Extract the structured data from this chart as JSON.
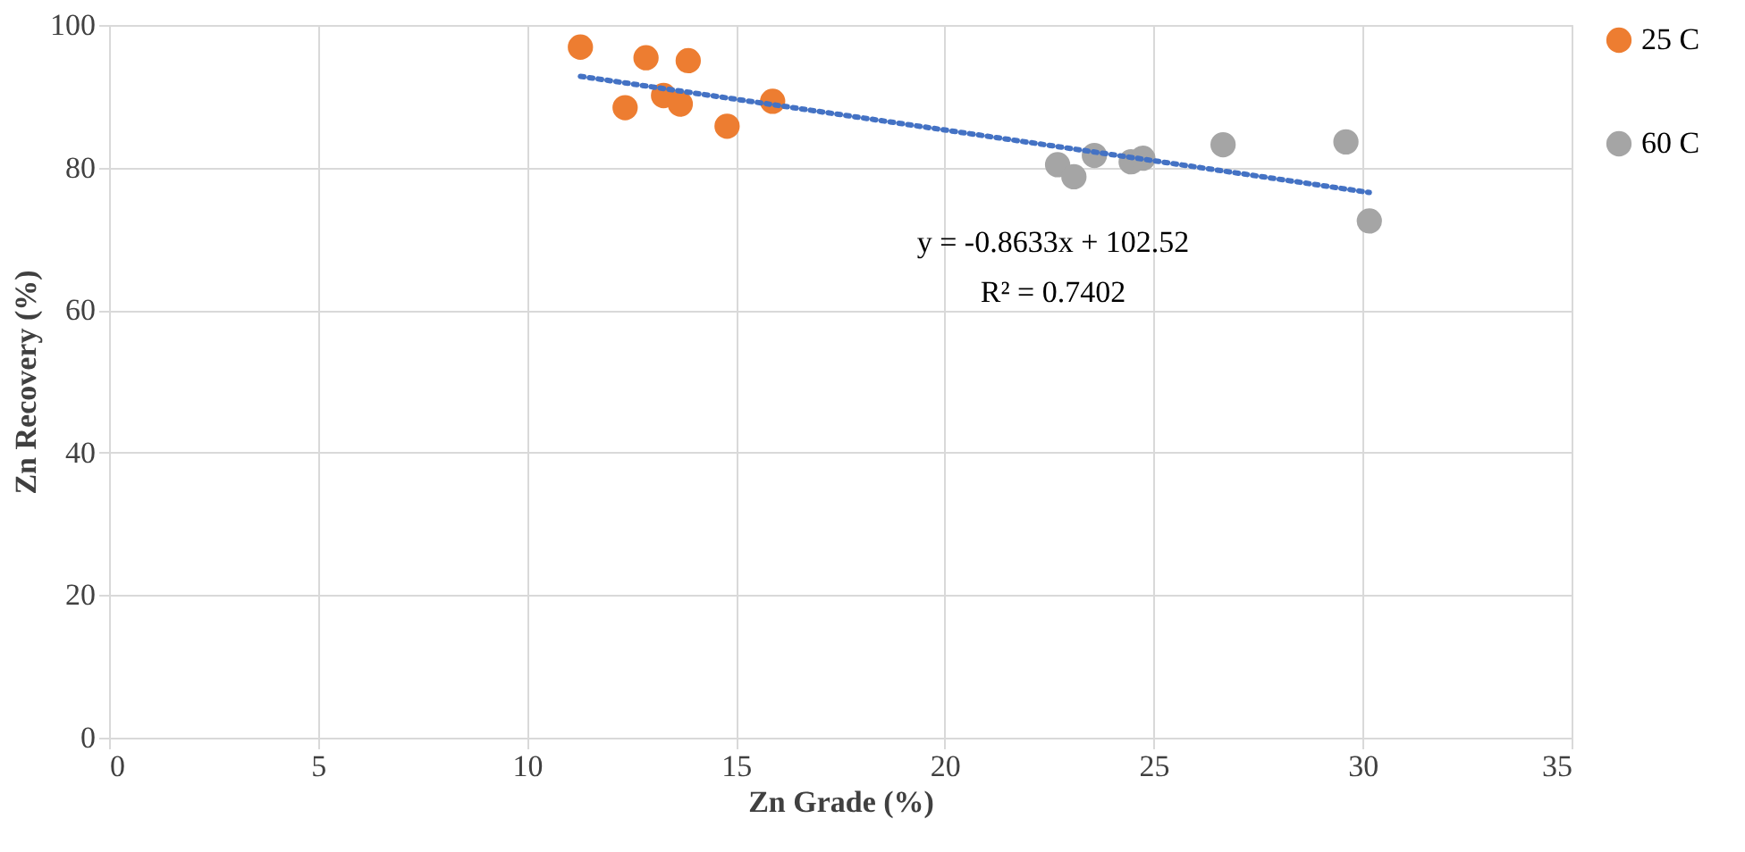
{
  "chart_data": {
    "type": "scatter",
    "xlabel": "Zn Grade (%)",
    "ylabel": "Zn Recovery (%)",
    "xlim": [
      0,
      35
    ],
    "xticks": [
      0,
      5,
      10,
      15,
      20,
      25,
      30,
      35
    ],
    "ylim": [
      0,
      100
    ],
    "yticks": [
      0,
      20,
      40,
      60,
      80,
      100
    ],
    "grid": true,
    "legend": "right",
    "marker": "circle",
    "series": [
      {
        "name": "25 C",
        "color": "#ed7d31",
        "x": [
          11.28,
          12.35,
          12.85,
          13.27,
          13.67,
          13.86,
          14.79,
          15.88
        ],
        "values": [
          96.9,
          88.4,
          95.4,
          90.1,
          88.9,
          95.0,
          85.8,
          89.3
        ]
      },
      {
        "name": "60 C",
        "color": "#a5a5a5",
        "x": [
          22.7,
          23.09,
          23.58,
          24.46,
          24.74,
          26.66,
          29.6,
          30.16
        ],
        "values": [
          80.4,
          78.7,
          81.7,
          80.8,
          81.3,
          83.2,
          83.6,
          72.5
        ]
      },
      {
        "type": "line",
        "marker": "none",
        "color": "#4472c4",
        "line_style": "dotted",
        "x": [
          11.28,
          30.16
        ],
        "values": [
          92.8,
          76.5
        ]
      }
    ],
    "annotations": [
      "y = -0.8633x + 102.52",
      "R² = 0.7402"
    ]
  }
}
